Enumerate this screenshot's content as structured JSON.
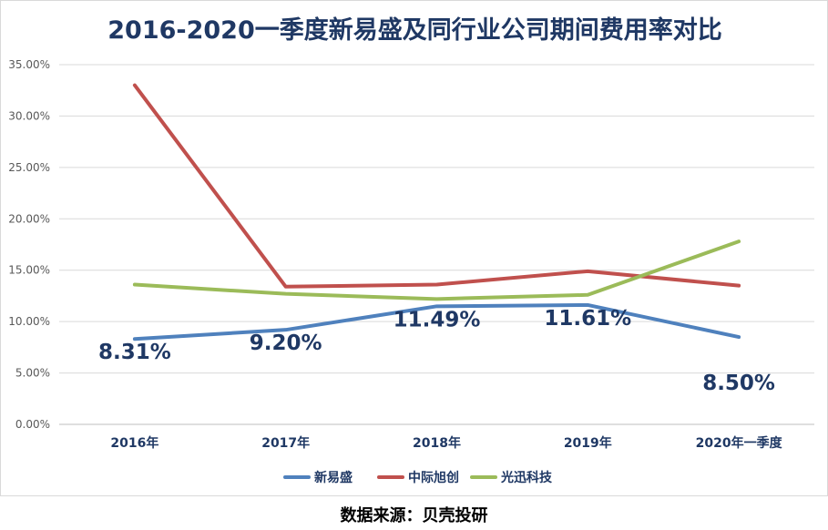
{
  "chart_data": {
    "type": "line",
    "title": "2016-2020一季度新易盛及同行业公司期间费用率对比",
    "categories": [
      "2016年",
      "2017年",
      "2018年",
      "2019年",
      "2020年一季度"
    ],
    "y_ticks": [
      "0.00%",
      "5.00%",
      "10.00%",
      "15.00%",
      "20.00%",
      "25.00%",
      "30.00%",
      "35.00%"
    ],
    "ylim": [
      0,
      35
    ],
    "grid": true,
    "legend_position": "bottom",
    "series": [
      {
        "name": "新易盛",
        "color": "#4f81bd",
        "values": [
          8.31,
          9.2,
          11.49,
          11.61,
          8.5
        ],
        "data_labels": [
          "8.31%",
          "9.20%",
          "11.49%",
          "11.61%",
          "8.50%"
        ]
      },
      {
        "name": "中际旭创",
        "color": "#c0504d",
        "values": [
          33.0,
          13.4,
          13.6,
          14.9,
          13.5
        ]
      },
      {
        "name": "光迅科技",
        "color": "#9bbb59",
        "values": [
          13.6,
          12.7,
          12.2,
          12.6,
          17.8
        ]
      }
    ]
  },
  "source_note": "数据来源：贝壳投研"
}
